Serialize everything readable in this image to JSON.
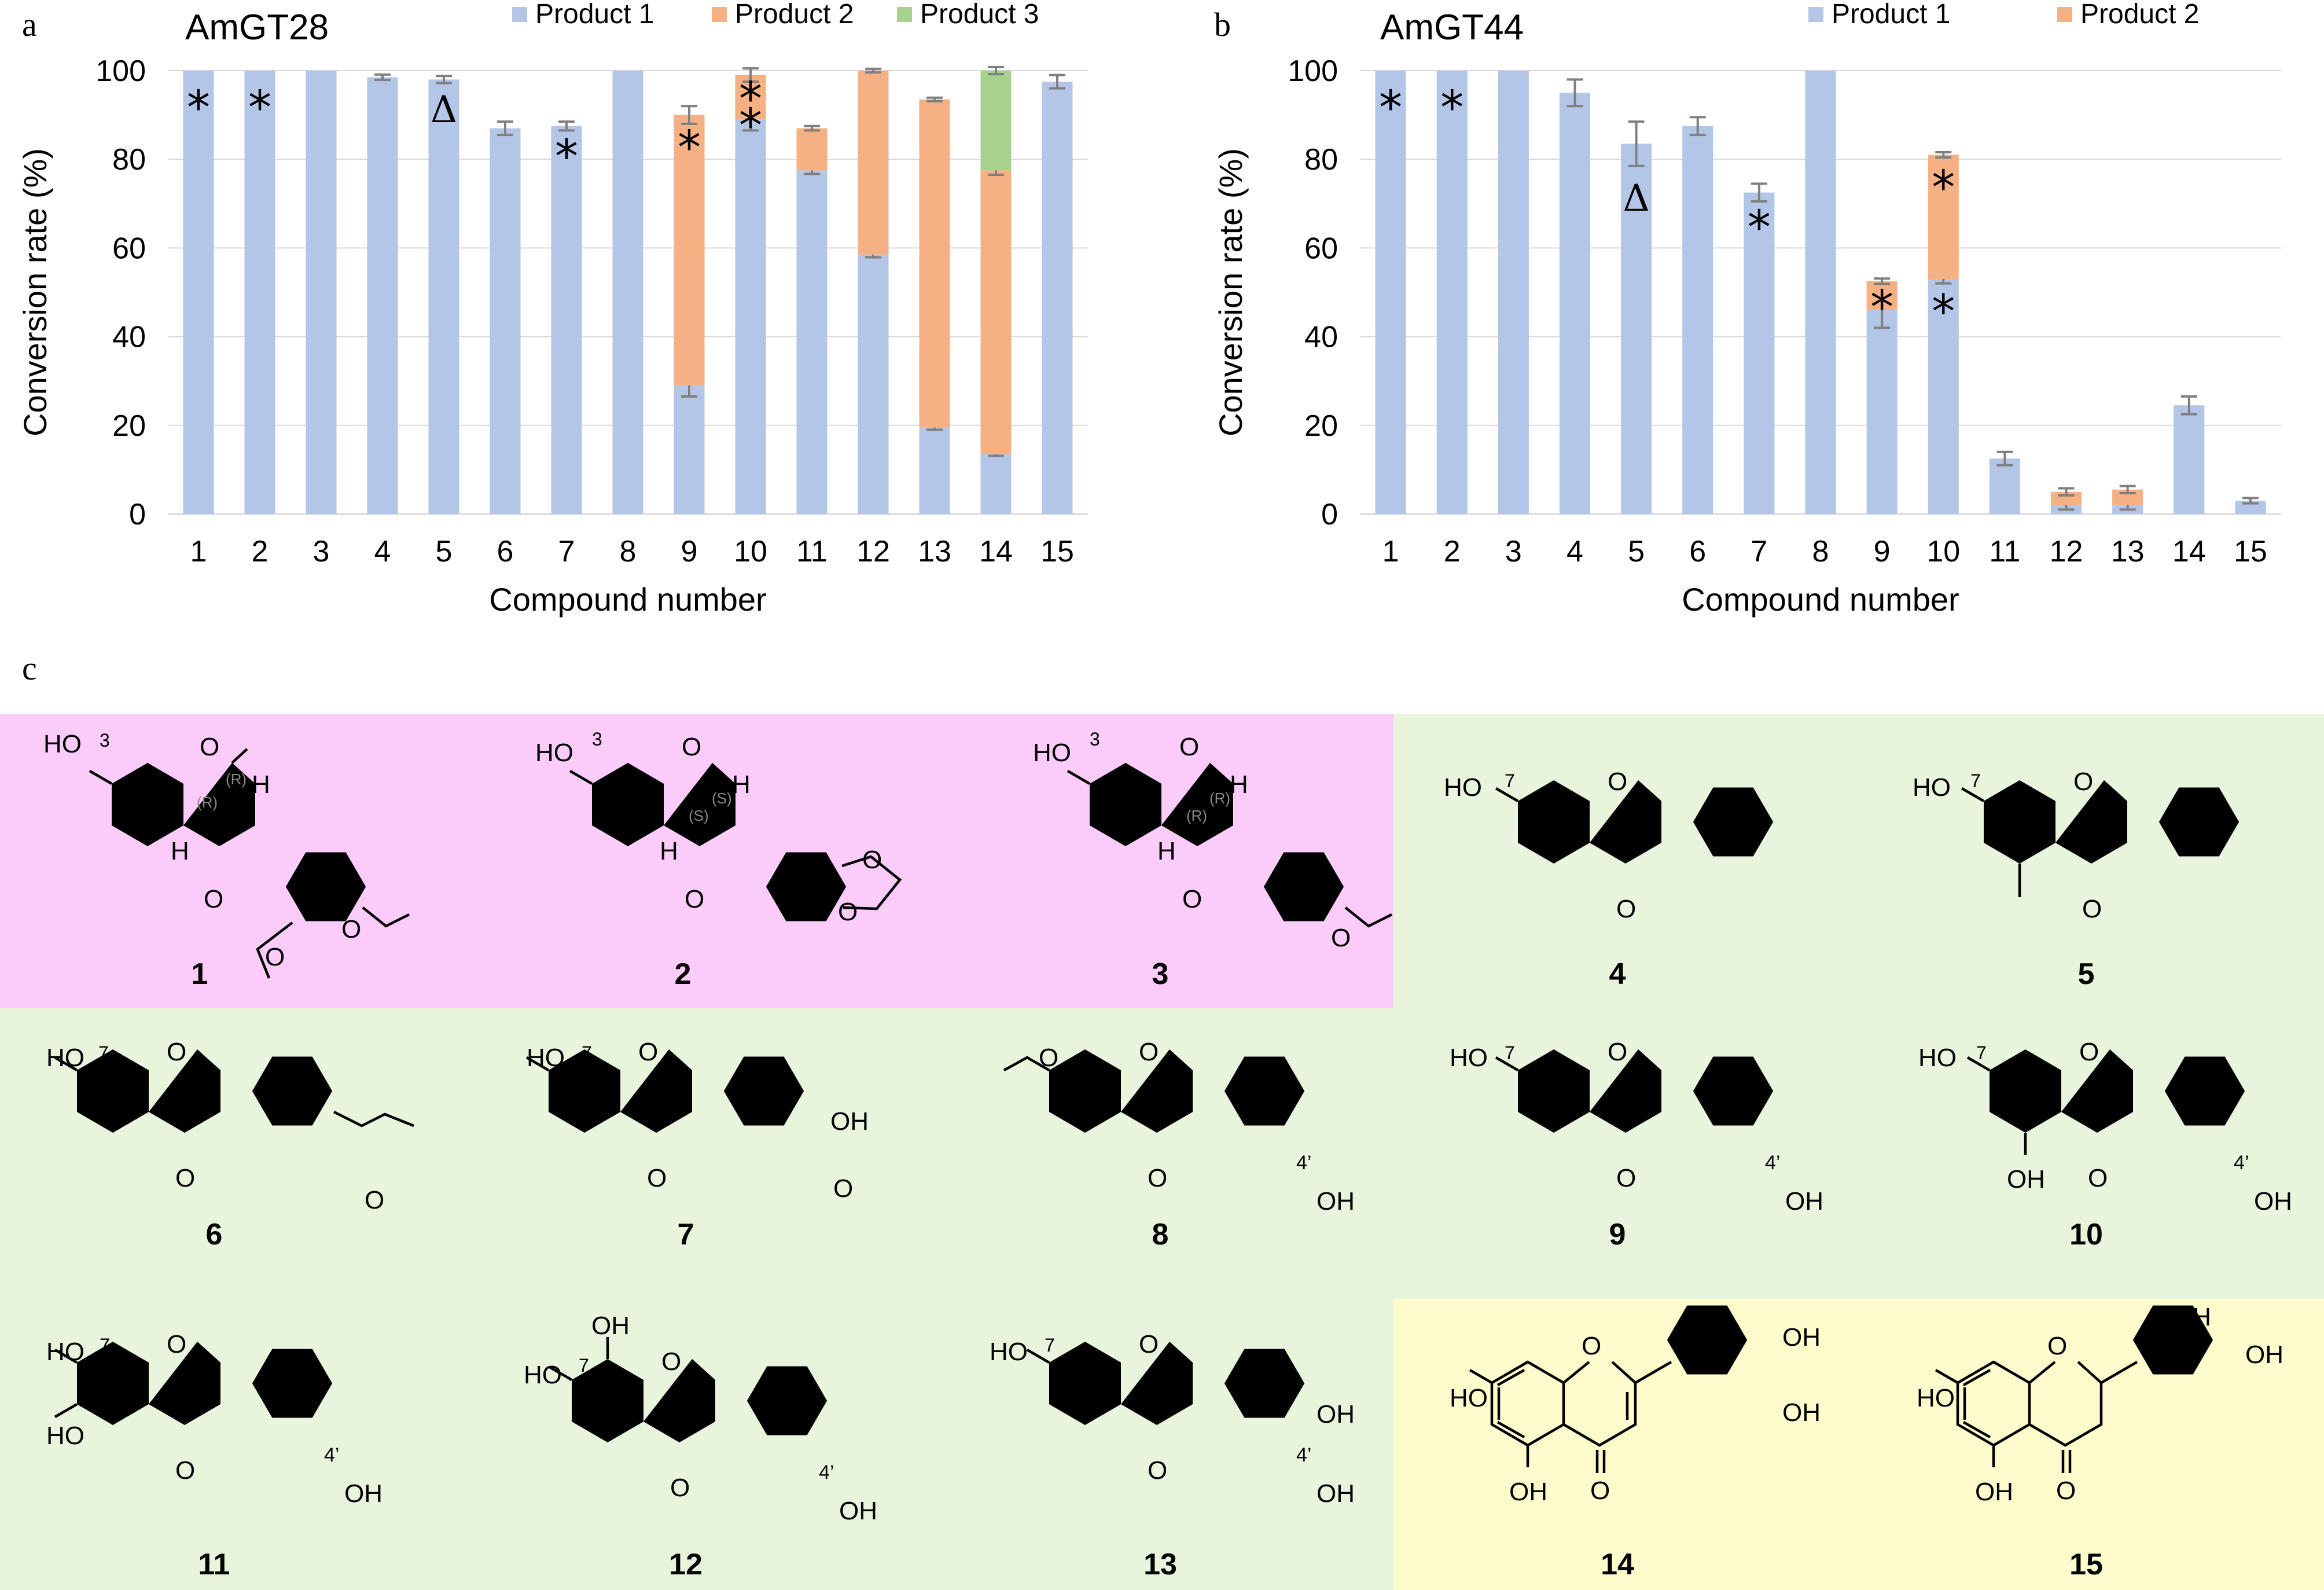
{
  "colors": {
    "product1": "#b3c6e7",
    "product2": "#f5b183",
    "product3": "#a9d18e",
    "errorbar": "#7f7f7f",
    "panel_magenta": "#fbcbfa",
    "panel_green": "#e9f4dc",
    "panel_yellow": "#fdfbcc"
  },
  "panel_labels": {
    "a": "a",
    "b": "b",
    "c": "c"
  },
  "chart_data": [
    {
      "type": "bar",
      "stacked": true,
      "title": "AmGT28",
      "xlabel": "Compound number",
      "ylabel": "Conversion rate (%)",
      "ylim": [
        0,
        100
      ],
      "yticks": [
        "0",
        "20",
        "40",
        "60",
        "80",
        "100"
      ],
      "categories": [
        "1",
        "2",
        "3",
        "4",
        "5",
        "6",
        "7",
        "8",
        "9",
        "10",
        "11",
        "12",
        "13",
        "14",
        "15"
      ],
      "series": [
        {
          "name": "Product 1",
          "color": "#b3c6e7",
          "values": [
            100,
            100,
            100,
            98.5,
            98,
            87,
            87.5,
            100,
            29,
            89,
            77.5,
            58.5,
            19.5,
            13.5,
            97.5
          ],
          "errors": [
            0,
            0,
            0,
            0.6,
            0.8,
            1.5,
            1.0,
            0,
            2.5,
            2.5,
            0.8,
            0.6,
            0.5,
            0.4,
            1.5
          ]
        },
        {
          "name": "Product 2",
          "color": "#f5b183",
          "values": [
            0,
            0,
            0,
            0,
            0,
            0,
            0,
            0,
            61,
            10,
            9.5,
            41.5,
            74,
            64,
            0
          ],
          "errors": [
            0,
            0,
            0,
            0,
            0,
            0,
            0,
            0,
            2.0,
            1.5,
            0.5,
            0.4,
            0.4,
            1.0,
            0
          ]
        },
        {
          "name": "Product 3",
          "color": "#a9d18e",
          "values": [
            0,
            0,
            0,
            0,
            0,
            0,
            0,
            0,
            0,
            0,
            0,
            0,
            0,
            22.5,
            0
          ],
          "errors": [
            0,
            0,
            0,
            0,
            0,
            0,
            0,
            0,
            0,
            0,
            0,
            0,
            0,
            0.8,
            0
          ]
        }
      ],
      "annotations": [
        {
          "category": "1",
          "y": 93,
          "text": "*"
        },
        {
          "category": "2",
          "y": 93,
          "text": "*"
        },
        {
          "category": "5",
          "y": 91,
          "text": "Δ"
        },
        {
          "category": "7",
          "y": 82,
          "text": "*"
        },
        {
          "category": "9",
          "y": 84,
          "text": "*"
        },
        {
          "category": "10",
          "y": 95,
          "text": "*"
        },
        {
          "category": "10",
          "y": 89,
          "text": "*"
        }
      ]
    },
    {
      "type": "bar",
      "stacked": true,
      "title": "AmGT44",
      "xlabel": "Compound number",
      "ylabel": "Conversion rate (%)",
      "ylim": [
        0,
        100
      ],
      "yticks": [
        "0",
        "20",
        "40",
        "60",
        "80",
        "100"
      ],
      "categories": [
        "1",
        "2",
        "3",
        "4",
        "5",
        "6",
        "7",
        "8",
        "9",
        "10",
        "11",
        "12",
        "13",
        "14",
        "15"
      ],
      "series": [
        {
          "name": "Product 1",
          "color": "#b3c6e7",
          "values": [
            100,
            100,
            100,
            95,
            83.5,
            87.5,
            72.5,
            100,
            46,
            53,
            12.5,
            2,
            2,
            24.5,
            3
          ],
          "errors": [
            0,
            0,
            0,
            3,
            5,
            2,
            2,
            0,
            4,
            1,
            1.5,
            1,
            1,
            2,
            0.6
          ]
        },
        {
          "name": "Product 2",
          "color": "#f5b183",
          "values": [
            0,
            0,
            0,
            0,
            0,
            0,
            0,
            0,
            6.5,
            28,
            0,
            3,
            3.5,
            0,
            0
          ],
          "errors": [
            0,
            0,
            0,
            0,
            0,
            0,
            0,
            0,
            0.6,
            0.6,
            0,
            0.8,
            0.8,
            0,
            0
          ]
        }
      ],
      "annotations": [
        {
          "category": "1",
          "y": 93,
          "text": "*"
        },
        {
          "category": "2",
          "y": 93,
          "text": "*"
        },
        {
          "category": "5",
          "y": 71,
          "text": "Δ"
        },
        {
          "category": "7",
          "y": 66,
          "text": "*"
        },
        {
          "category": "9",
          "y": 48,
          "text": "*"
        },
        {
          "category": "10",
          "y": 75,
          "text": "*"
        },
        {
          "category": "10",
          "y": 47,
          "text": "*"
        }
      ]
    }
  ],
  "structures": {
    "labels": [
      "1",
      "2",
      "3",
      "4",
      "5",
      "6",
      "7",
      "8",
      "9",
      "10",
      "11",
      "12",
      "13",
      "14",
      "15"
    ],
    "atoms": {
      "O": "O",
      "HO": "HO",
      "OH": "OH",
      "H": "H",
      "num3": "3",
      "num7": "7",
      "num4p": "4’",
      "R": "(R)",
      "S": "(S)"
    }
  }
}
